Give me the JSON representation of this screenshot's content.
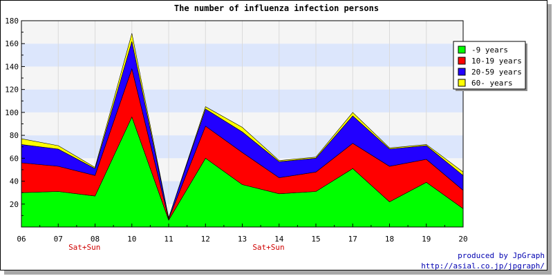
{
  "chart_data": {
    "type": "area",
    "stacked": true,
    "title": "The number of influenza infection persons",
    "xlabel": "",
    "ylabel": "",
    "categories": [
      "06",
      "07",
      "08",
      "10",
      "11",
      "12",
      "13",
      "14",
      "15",
      "17",
      "18",
      "19",
      "20"
    ],
    "ylim": [
      0,
      180
    ],
    "yticks": [
      20,
      40,
      60,
      80,
      100,
      120,
      140,
      160,
      180
    ],
    "grid": true,
    "band_colors": [
      "#f5f5f5",
      "#dce6fc"
    ],
    "annotations": [
      {
        "category": "07",
        "text": "Sat+Sun",
        "color": "#d00000"
      },
      {
        "category": "13",
        "text": "Sat+Sun",
        "color": "#d00000"
      }
    ],
    "legend": {
      "placement": "right-top"
    },
    "series": [
      {
        "name": "-9 years",
        "color": "#00ff00",
        "values": [
          30,
          31,
          27,
          96,
          6,
          60,
          37,
          29,
          31,
          51,
          22,
          39,
          16
        ]
      },
      {
        "name": "10-19 years",
        "color": "#ff0000",
        "values": [
          26,
          22,
          18,
          42,
          1,
          28,
          28,
          14,
          17,
          22,
          31,
          20,
          16
        ]
      },
      {
        "name": "20-59 years",
        "color": "#2200ff",
        "values": [
          16,
          15,
          6,
          24,
          1,
          15,
          18,
          14,
          12,
          24,
          15,
          12,
          13
        ]
      },
      {
        "name": "60- years",
        "color": "#ffff00",
        "values": [
          5,
          3,
          1,
          7,
          0,
          2,
          4,
          1,
          1,
          3,
          1,
          1,
          3
        ]
      }
    ]
  },
  "footer": {
    "credit_line1": "produced by JpGraph",
    "credit_line2": "http://asial.co.jp/jpgraph/"
  }
}
